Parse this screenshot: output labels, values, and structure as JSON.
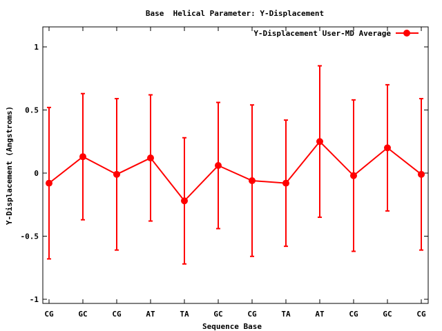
{
  "chart_data": {
    "type": "line",
    "title": "Base  Helical Parameter: Y-Displacement",
    "xlabel": "Sequence Base",
    "ylabel": "Y-Displacement (Angstroms)",
    "ylim": [
      -1.05,
      1.15
    ],
    "yticks": [
      1,
      0.5,
      0,
      -0.5,
      -1
    ],
    "ytick_labels": [
      "1",
      "0.5",
      "0",
      "-0.5",
      "-1"
    ],
    "categories": [
      "CG",
      "GC",
      "CG",
      "AT",
      "TA",
      "GC",
      "CG",
      "TA",
      "AT",
      "CG",
      "GC",
      "CG"
    ],
    "grid": false,
    "legend_position": "top-right",
    "series": [
      {
        "name": "Y-Displacement User-MD Average",
        "color": "#ff0000",
        "values": [
          -0.08,
          0.13,
          -0.01,
          0.12,
          -0.22,
          0.06,
          -0.06,
          -0.08,
          0.25,
          -0.02,
          0.2,
          -0.01
        ],
        "err_low": [
          -0.68,
          -0.37,
          -0.61,
          -0.38,
          -0.72,
          -0.44,
          -0.66,
          -0.58,
          -0.35,
          -0.62,
          -0.3,
          -0.61
        ],
        "err_high": [
          0.52,
          0.63,
          0.59,
          0.62,
          0.28,
          0.56,
          0.54,
          0.42,
          0.85,
          0.58,
          0.7,
          0.59
        ]
      }
    ]
  }
}
